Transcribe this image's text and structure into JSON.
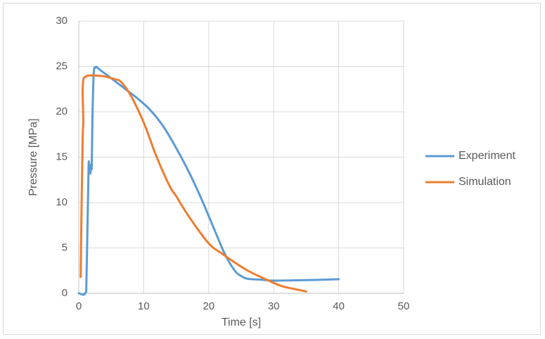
{
  "chart_data": {
    "type": "scatter",
    "title": "",
    "xlabel": "Time [s]",
    "ylabel": "Pressure [MPa]",
    "xlim": [
      0,
      50
    ],
    "ylim": [
      0,
      30
    ],
    "xticks": [
      0,
      10,
      20,
      30,
      40,
      50
    ],
    "yticks": [
      0,
      5,
      10,
      15,
      20,
      25,
      30
    ],
    "grid": "major gridlines on both axes",
    "legend_position": "right",
    "series": [
      {
        "name": "Experiment",
        "color": "#5b9bd5",
        "x": [
          0.0,
          1.0,
          1.2,
          1.5,
          1.6,
          1.8,
          1.9,
          2.0,
          2.1,
          2.3,
          2.6,
          2.8,
          3.5,
          5.0,
          7.0,
          9.0,
          11.0,
          13.0,
          15.0,
          17.0,
          19.0,
          21.0,
          22.5,
          24.0,
          25.0,
          26.0,
          28.0,
          30.0,
          35.0,
          40.0
        ],
        "y": [
          0.0,
          0.0,
          2.0,
          13.5,
          13.8,
          13.2,
          14.2,
          14.0,
          19.0,
          24.2,
          24.9,
          24.9,
          24.5,
          23.7,
          22.6,
          21.5,
          20.2,
          18.4,
          16.0,
          13.3,
          10.2,
          6.8,
          4.3,
          2.5,
          1.9,
          1.6,
          1.5,
          1.4,
          1.45,
          1.55
        ]
      },
      {
        "name": "Simulation",
        "color": "#ed7d31",
        "x": [
          0.3,
          0.4,
          0.6,
          0.7,
          0.6,
          0.7,
          1.0,
          1.5,
          2.5,
          4.0,
          5.5,
          6.5,
          8.0,
          10.0,
          12.0,
          14.0,
          15.0,
          17.0,
          20.0,
          22.0,
          24.0,
          26.0,
          28.0,
          31.0,
          33.0,
          35.0
        ],
        "y": [
          1.8,
          8.0,
          17.0,
          19.0,
          22.0,
          23.5,
          23.85,
          24.0,
          24.0,
          23.9,
          23.6,
          23.3,
          21.8,
          18.8,
          15.0,
          11.8,
          10.7,
          8.4,
          5.5,
          4.4,
          3.4,
          2.5,
          1.8,
          0.85,
          0.5,
          0.2
        ]
      }
    ]
  }
}
